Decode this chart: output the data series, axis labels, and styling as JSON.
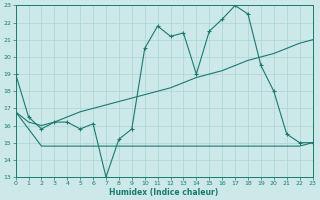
{
  "xlabel": "Humidex (Indice chaleur)",
  "bg_color": "#cce8e8",
  "grid_color": "#aad4d4",
  "line_color": "#1a7a6e",
  "xlim": [
    0,
    23
  ],
  "ylim": [
    13,
    23
  ],
  "xticks": [
    0,
    1,
    2,
    3,
    4,
    5,
    6,
    7,
    8,
    9,
    10,
    11,
    12,
    13,
    14,
    15,
    16,
    17,
    18,
    19,
    20,
    21,
    22,
    23
  ],
  "yticks": [
    13,
    14,
    15,
    16,
    17,
    18,
    19,
    20,
    21,
    22,
    23
  ],
  "s1_x": [
    0,
    1,
    2,
    3,
    4,
    5,
    6,
    7,
    8,
    9,
    10,
    11,
    12,
    13,
    14,
    15,
    16,
    17,
    18,
    19,
    20,
    21,
    22,
    23
  ],
  "s1_y": [
    19.0,
    16.5,
    15.8,
    16.2,
    16.2,
    15.8,
    16.1,
    13.0,
    15.2,
    15.8,
    20.5,
    21.8,
    21.2,
    21.4,
    19.0,
    21.5,
    22.2,
    23.0,
    22.5,
    19.5,
    18.0,
    15.5,
    15.0,
    15.0
  ],
  "s2_x": [
    0,
    1,
    2,
    3,
    4,
    5,
    6,
    7,
    8,
    9,
    10,
    11,
    12,
    13,
    14,
    15,
    16,
    17,
    18,
    19,
    20,
    21,
    22,
    23
  ],
  "s2_y": [
    16.8,
    16.2,
    16.0,
    16.2,
    16.5,
    16.8,
    17.0,
    17.2,
    17.4,
    17.6,
    17.8,
    18.0,
    18.2,
    18.5,
    18.8,
    19.0,
    19.2,
    19.5,
    19.8,
    20.0,
    20.2,
    20.5,
    20.8,
    21.0
  ],
  "s3_x": [
    0,
    2,
    3,
    7,
    8,
    9,
    10,
    11,
    12,
    13,
    14,
    15,
    16,
    17,
    18,
    19,
    20,
    21,
    22,
    23
  ],
  "s3_y": [
    16.8,
    14.8,
    14.8,
    14.8,
    14.8,
    14.8,
    14.8,
    14.8,
    14.8,
    14.8,
    14.8,
    14.8,
    14.8,
    14.8,
    14.8,
    14.8,
    14.8,
    14.8,
    14.8,
    15.0
  ]
}
